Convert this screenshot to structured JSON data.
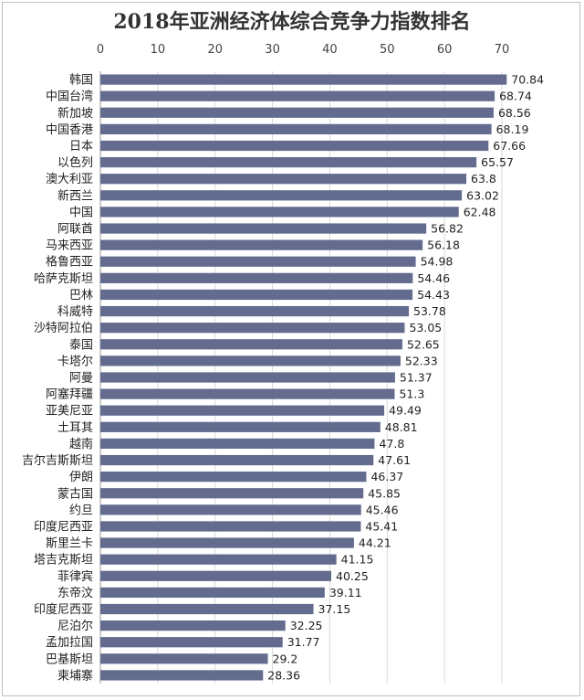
{
  "chart_data": {
    "type": "bar",
    "orientation": "horizontal",
    "title": "2018年亚洲经济体综合竞争力指数排名",
    "xlim": [
      0,
      70
    ],
    "ticks": [
      0,
      10,
      20,
      30,
      40,
      50,
      60,
      70
    ],
    "grid": true,
    "colors": {
      "bar": "#636C8F",
      "grid": "#d9d9d9",
      "axis": "#999999"
    },
    "categories": [
      "韩国",
      "中国台湾",
      "新加坡",
      "中国香港",
      "日本",
      "以色列",
      "澳大利亚",
      "新西兰",
      "中国",
      "阿联酋",
      "马来西亚",
      "格鲁西亚",
      "哈萨克斯坦",
      "巴林",
      "科威特",
      "沙特阿拉伯",
      "泰国",
      "卡塔尔",
      "阿曼",
      "阿塞拜疆",
      "亚美尼亚",
      "土耳其",
      "越南",
      "吉尔吉斯斯坦",
      "伊朗",
      "蒙古国",
      "约旦",
      "印度尼西亚",
      "斯里兰卡",
      "塔吉克斯坦",
      "菲律宾",
      "东帝汶",
      "印度尼西亚",
      "尼泊尔",
      "孟加拉国",
      "巴基斯坦",
      "柬埔寨"
    ],
    "values": [
      70.84,
      68.74,
      68.56,
      68.19,
      67.66,
      65.57,
      63.8,
      63.02,
      62.48,
      56.82,
      56.18,
      54.98,
      54.46,
      54.43,
      53.78,
      53.05,
      52.65,
      52.33,
      51.37,
      51.3,
      49.49,
      48.81,
      47.8,
      47.61,
      46.37,
      45.85,
      45.46,
      45.41,
      44.21,
      41.15,
      40.25,
      39.11,
      37.15,
      32.25,
      31.77,
      29.2,
      28.36
    ]
  }
}
